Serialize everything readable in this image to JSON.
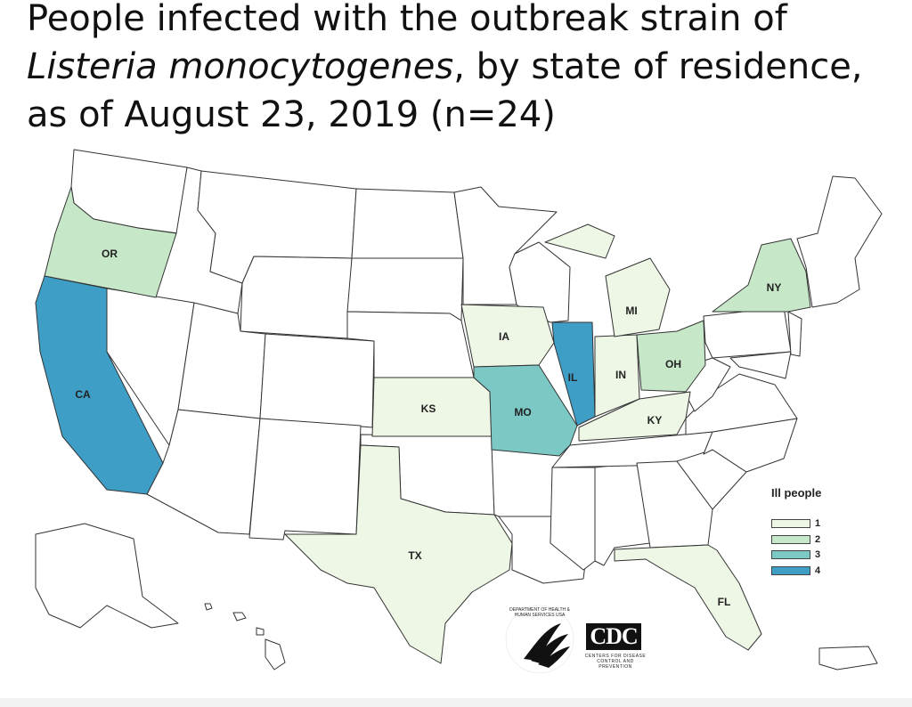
{
  "title": {
    "part1": "People infected with the outbreak strain of ",
    "italic": "Listeria monocytogenes",
    "part2": ", by state of residence, as of August 23, 2019 (n=24)"
  },
  "colors": {
    "c0": "#ffffff",
    "c1": "#eef7e6",
    "c2": "#c6e8c9",
    "c3": "#7cc8c5",
    "c4": "#3f9ec6"
  },
  "states": [
    {
      "code": "OR",
      "label": "OR",
      "count": 2
    },
    {
      "code": "CA",
      "label": "CA",
      "count": 4
    },
    {
      "code": "IA",
      "label": "IA",
      "count": 1
    },
    {
      "code": "KS",
      "label": "KS",
      "count": 1
    },
    {
      "code": "MO",
      "label": "MO",
      "count": 3
    },
    {
      "code": "IL",
      "label": "IL",
      "count": 4
    },
    {
      "code": "IN",
      "label": "IN",
      "count": 1
    },
    {
      "code": "MI",
      "label": "MI",
      "count": 1
    },
    {
      "code": "OH",
      "label": "OH",
      "count": 2
    },
    {
      "code": "KY",
      "label": "KY",
      "count": 1
    },
    {
      "code": "NY",
      "label": "NY",
      "count": 2
    },
    {
      "code": "TX",
      "label": "TX",
      "count": 1
    },
    {
      "code": "FL",
      "label": "FL",
      "count": 1
    }
  ],
  "legend": {
    "title": "Ill people",
    "items": [
      {
        "label": "1",
        "count": 1
      },
      {
        "label": "2",
        "count": 2
      },
      {
        "label": "3",
        "count": 3
      },
      {
        "label": "4",
        "count": 4
      }
    ]
  },
  "logos": {
    "cdc": "CDC",
    "cdc_sub": "CENTERS FOR DISEASE CONTROL AND PREVENTION",
    "hhs_text": "DEPARTMENT OF HEALTH & HUMAN SERVICES USA"
  }
}
